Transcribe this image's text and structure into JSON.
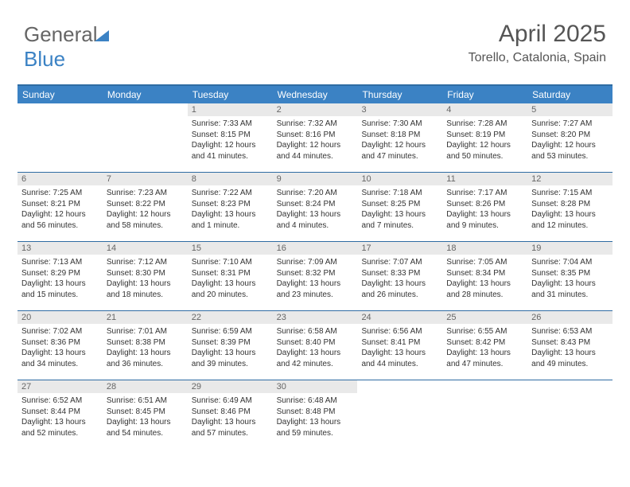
{
  "brand": {
    "part1": "General",
    "part2": "Blue"
  },
  "header": {
    "month_title": "April 2025",
    "location": "Torello, Catalonia, Spain"
  },
  "colors": {
    "header_bg": "#3b82c4",
    "header_border": "#2f6ca3",
    "daynum_bg": "#e9e9e9",
    "text": "#333333"
  },
  "weekdays": [
    "Sunday",
    "Monday",
    "Tuesday",
    "Wednesday",
    "Thursday",
    "Friday",
    "Saturday"
  ],
  "weeks": [
    [
      {
        "empty": true
      },
      {
        "empty": true
      },
      {
        "num": "1",
        "sunrise": "Sunrise: 7:33 AM",
        "sunset": "Sunset: 8:15 PM",
        "daylight": "Daylight: 12 hours and 41 minutes."
      },
      {
        "num": "2",
        "sunrise": "Sunrise: 7:32 AM",
        "sunset": "Sunset: 8:16 PM",
        "daylight": "Daylight: 12 hours and 44 minutes."
      },
      {
        "num": "3",
        "sunrise": "Sunrise: 7:30 AM",
        "sunset": "Sunset: 8:18 PM",
        "daylight": "Daylight: 12 hours and 47 minutes."
      },
      {
        "num": "4",
        "sunrise": "Sunrise: 7:28 AM",
        "sunset": "Sunset: 8:19 PM",
        "daylight": "Daylight: 12 hours and 50 minutes."
      },
      {
        "num": "5",
        "sunrise": "Sunrise: 7:27 AM",
        "sunset": "Sunset: 8:20 PM",
        "daylight": "Daylight: 12 hours and 53 minutes."
      }
    ],
    [
      {
        "num": "6",
        "sunrise": "Sunrise: 7:25 AM",
        "sunset": "Sunset: 8:21 PM",
        "daylight": "Daylight: 12 hours and 56 minutes."
      },
      {
        "num": "7",
        "sunrise": "Sunrise: 7:23 AM",
        "sunset": "Sunset: 8:22 PM",
        "daylight": "Daylight: 12 hours and 58 minutes."
      },
      {
        "num": "8",
        "sunrise": "Sunrise: 7:22 AM",
        "sunset": "Sunset: 8:23 PM",
        "daylight": "Daylight: 13 hours and 1 minute."
      },
      {
        "num": "9",
        "sunrise": "Sunrise: 7:20 AM",
        "sunset": "Sunset: 8:24 PM",
        "daylight": "Daylight: 13 hours and 4 minutes."
      },
      {
        "num": "10",
        "sunrise": "Sunrise: 7:18 AM",
        "sunset": "Sunset: 8:25 PM",
        "daylight": "Daylight: 13 hours and 7 minutes."
      },
      {
        "num": "11",
        "sunrise": "Sunrise: 7:17 AM",
        "sunset": "Sunset: 8:26 PM",
        "daylight": "Daylight: 13 hours and 9 minutes."
      },
      {
        "num": "12",
        "sunrise": "Sunrise: 7:15 AM",
        "sunset": "Sunset: 8:28 PM",
        "daylight": "Daylight: 13 hours and 12 minutes."
      }
    ],
    [
      {
        "num": "13",
        "sunrise": "Sunrise: 7:13 AM",
        "sunset": "Sunset: 8:29 PM",
        "daylight": "Daylight: 13 hours and 15 minutes."
      },
      {
        "num": "14",
        "sunrise": "Sunrise: 7:12 AM",
        "sunset": "Sunset: 8:30 PM",
        "daylight": "Daylight: 13 hours and 18 minutes."
      },
      {
        "num": "15",
        "sunrise": "Sunrise: 7:10 AM",
        "sunset": "Sunset: 8:31 PM",
        "daylight": "Daylight: 13 hours and 20 minutes."
      },
      {
        "num": "16",
        "sunrise": "Sunrise: 7:09 AM",
        "sunset": "Sunset: 8:32 PM",
        "daylight": "Daylight: 13 hours and 23 minutes."
      },
      {
        "num": "17",
        "sunrise": "Sunrise: 7:07 AM",
        "sunset": "Sunset: 8:33 PM",
        "daylight": "Daylight: 13 hours and 26 minutes."
      },
      {
        "num": "18",
        "sunrise": "Sunrise: 7:05 AM",
        "sunset": "Sunset: 8:34 PM",
        "daylight": "Daylight: 13 hours and 28 minutes."
      },
      {
        "num": "19",
        "sunrise": "Sunrise: 7:04 AM",
        "sunset": "Sunset: 8:35 PM",
        "daylight": "Daylight: 13 hours and 31 minutes."
      }
    ],
    [
      {
        "num": "20",
        "sunrise": "Sunrise: 7:02 AM",
        "sunset": "Sunset: 8:36 PM",
        "daylight": "Daylight: 13 hours and 34 minutes."
      },
      {
        "num": "21",
        "sunrise": "Sunrise: 7:01 AM",
        "sunset": "Sunset: 8:38 PM",
        "daylight": "Daylight: 13 hours and 36 minutes."
      },
      {
        "num": "22",
        "sunrise": "Sunrise: 6:59 AM",
        "sunset": "Sunset: 8:39 PM",
        "daylight": "Daylight: 13 hours and 39 minutes."
      },
      {
        "num": "23",
        "sunrise": "Sunrise: 6:58 AM",
        "sunset": "Sunset: 8:40 PM",
        "daylight": "Daylight: 13 hours and 42 minutes."
      },
      {
        "num": "24",
        "sunrise": "Sunrise: 6:56 AM",
        "sunset": "Sunset: 8:41 PM",
        "daylight": "Daylight: 13 hours and 44 minutes."
      },
      {
        "num": "25",
        "sunrise": "Sunrise: 6:55 AM",
        "sunset": "Sunset: 8:42 PM",
        "daylight": "Daylight: 13 hours and 47 minutes."
      },
      {
        "num": "26",
        "sunrise": "Sunrise: 6:53 AM",
        "sunset": "Sunset: 8:43 PM",
        "daylight": "Daylight: 13 hours and 49 minutes."
      }
    ],
    [
      {
        "num": "27",
        "sunrise": "Sunrise: 6:52 AM",
        "sunset": "Sunset: 8:44 PM",
        "daylight": "Daylight: 13 hours and 52 minutes."
      },
      {
        "num": "28",
        "sunrise": "Sunrise: 6:51 AM",
        "sunset": "Sunset: 8:45 PM",
        "daylight": "Daylight: 13 hours and 54 minutes."
      },
      {
        "num": "29",
        "sunrise": "Sunrise: 6:49 AM",
        "sunset": "Sunset: 8:46 PM",
        "daylight": "Daylight: 13 hours and 57 minutes."
      },
      {
        "num": "30",
        "sunrise": "Sunrise: 6:48 AM",
        "sunset": "Sunset: 8:48 PM",
        "daylight": "Daylight: 13 hours and 59 minutes."
      },
      {
        "empty": true
      },
      {
        "empty": true
      },
      {
        "empty": true
      }
    ]
  ]
}
